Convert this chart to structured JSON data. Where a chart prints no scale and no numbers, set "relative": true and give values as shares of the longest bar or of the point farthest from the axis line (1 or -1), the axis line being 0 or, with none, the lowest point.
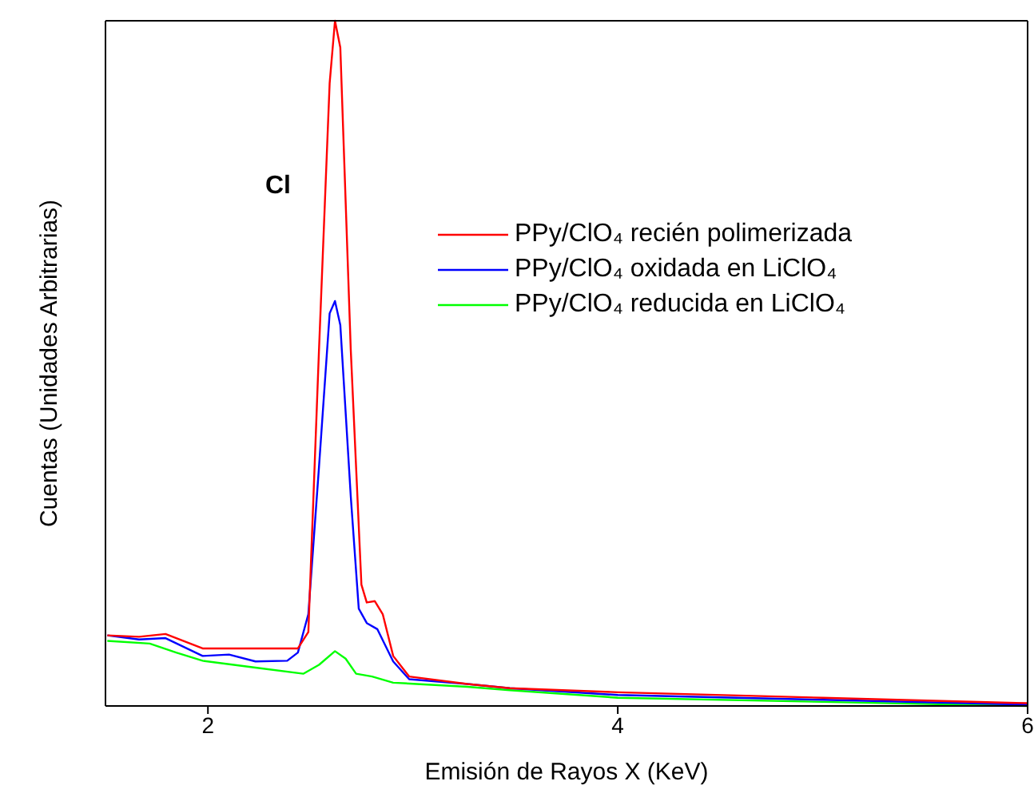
{
  "chart_data": {
    "type": "line",
    "relative": true,
    "xlabel": "Emisión de Rayos X (KeV)",
    "ylabel": "Cuentas (Unidades Arbitrarias)",
    "xlim": [
      1.5,
      6
    ],
    "xticks": [
      2,
      4,
      6
    ],
    "legend": "top right",
    "grid": false,
    "marker": "none",
    "line_style": "solid",
    "annotations": [
      "Cl"
    ],
    "series": [
      {
        "name": "PPy/ClO₄ recién polimerizada",
        "color": "#ff0000",
        "x": [
          1.509,
          1.664,
          1.793,
          1.974,
          2.232,
          2.439,
          2.49,
          2.542,
          2.594,
          2.62,
          2.646,
          2.697,
          2.749,
          2.775,
          2.814,
          2.853,
          2.904,
          2.982,
          3.266,
          3.473,
          4.0,
          5.0,
          6.0
        ],
        "values": [
          0.103,
          0.101,
          0.105,
          0.084,
          0.084,
          0.084,
          0.108,
          0.52,
          0.909,
          1.0,
          0.961,
          0.52,
          0.177,
          0.151,
          0.153,
          0.134,
          0.073,
          0.043,
          0.032,
          0.026,
          0.02,
          0.012,
          0.004
        ]
      },
      {
        "name": "PPy/ClO₄ oxidada en LiClO₄",
        "color": "#0000ff",
        "x": [
          1.509,
          1.664,
          1.793,
          1.974,
          2.103,
          2.232,
          2.387,
          2.439,
          2.49,
          2.542,
          2.594,
          2.62,
          2.646,
          2.697,
          2.736,
          2.775,
          2.827,
          2.904,
          2.982,
          3.266,
          3.473,
          4.0,
          5.0,
          6.0
        ],
        "values": [
          0.103,
          0.097,
          0.099,
          0.073,
          0.075,
          0.065,
          0.066,
          0.078,
          0.134,
          0.349,
          0.573,
          0.591,
          0.556,
          0.306,
          0.142,
          0.121,
          0.112,
          0.065,
          0.039,
          0.032,
          0.026,
          0.016,
          0.009,
          0.002
        ]
      },
      {
        "name": "PPy/ClO₄ reducida en LiClO₄",
        "color": "#00ff00",
        "x": [
          1.509,
          1.716,
          1.845,
          1.974,
          2.232,
          2.465,
          2.542,
          2.62,
          2.672,
          2.723,
          2.801,
          2.904,
          3.266,
          3.473,
          4.0,
          5.0,
          6.0
        ],
        "values": [
          0.095,
          0.091,
          0.078,
          0.066,
          0.056,
          0.047,
          0.06,
          0.08,
          0.069,
          0.047,
          0.043,
          0.034,
          0.028,
          0.023,
          0.012,
          0.006,
          0.0
        ]
      }
    ]
  }
}
